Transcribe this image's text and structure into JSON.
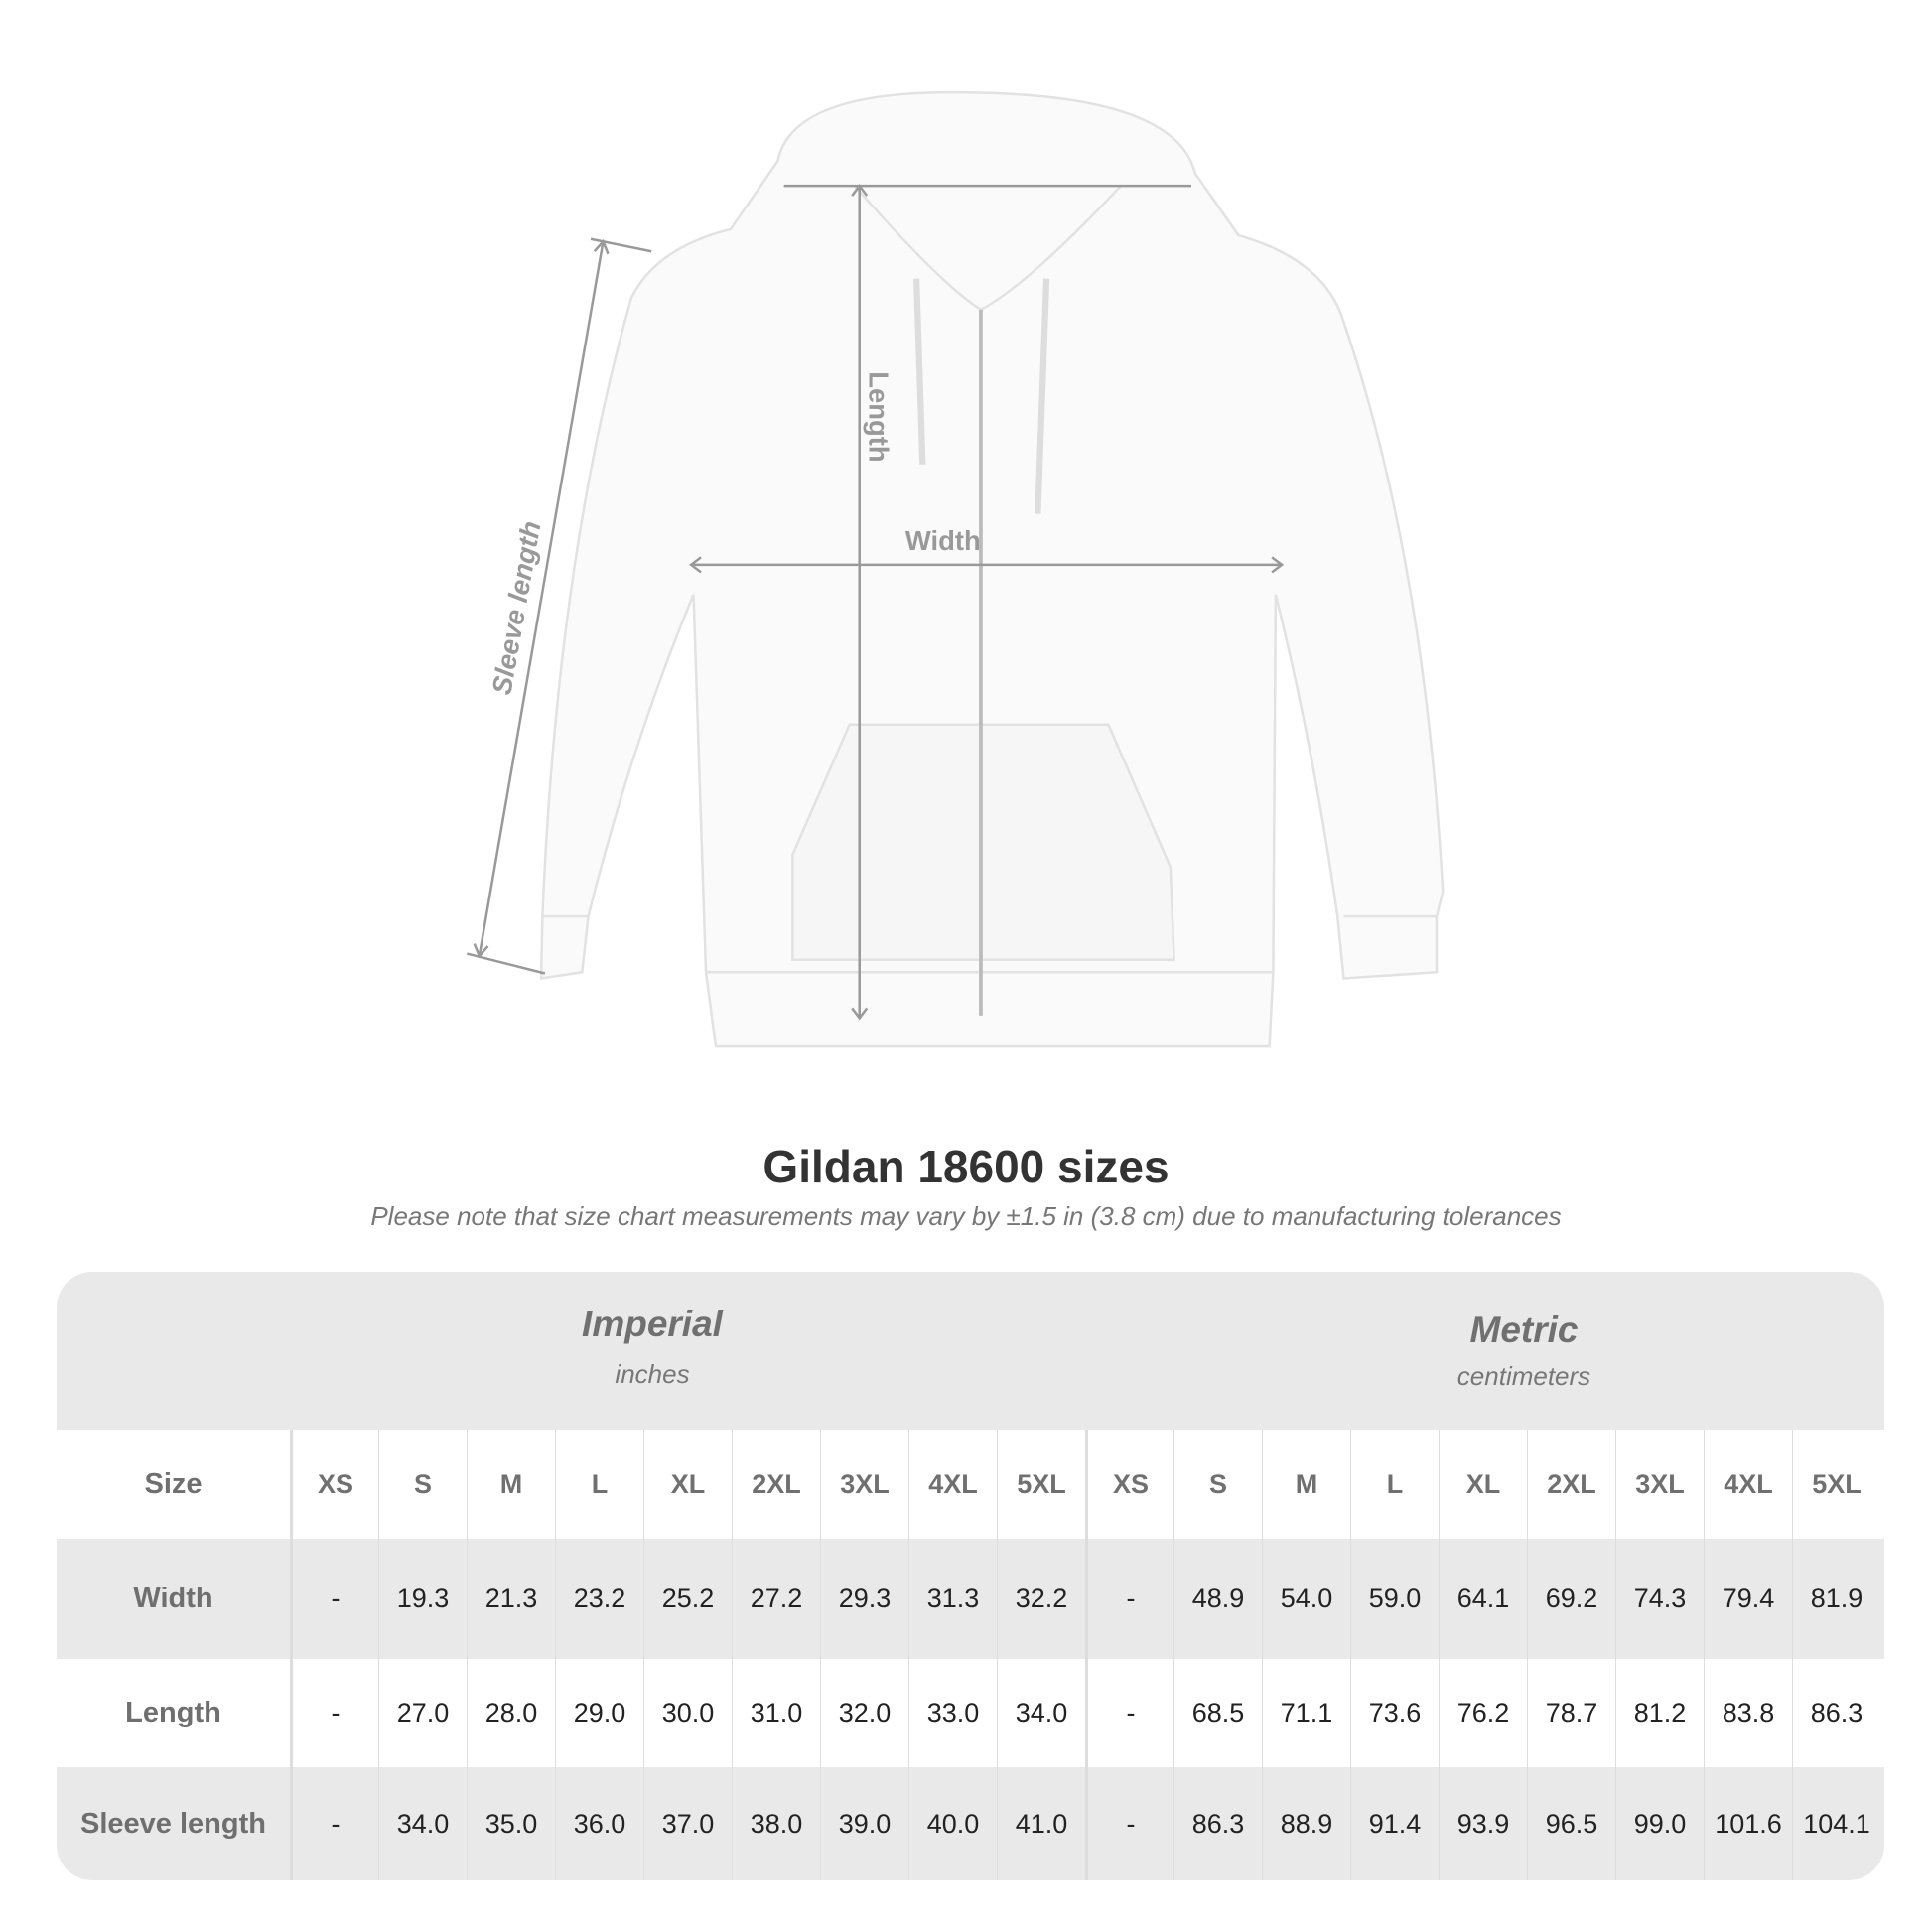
{
  "diagram": {
    "labels": {
      "length": "Length",
      "width": "Width",
      "sleeve": "Sleeve length"
    }
  },
  "title": "Gildan 18600 sizes",
  "note": "Please note that size chart measurements may vary by ±1.5 in (3.8 cm) due to manufacturing tolerances",
  "table": {
    "imperial": {
      "title": "Imperial",
      "unit": "inches"
    },
    "metric": {
      "title": "Metric",
      "unit": "centimeters"
    },
    "size_label": "Size",
    "sizes": [
      "XS",
      "S",
      "M",
      "L",
      "XL",
      "2XL",
      "3XL",
      "4XL",
      "5XL"
    ],
    "rows": [
      {
        "label": "Width",
        "imperial": [
          "-",
          "19.3",
          "21.3",
          "23.2",
          "25.2",
          "27.2",
          "29.3",
          "31.3",
          "32.2"
        ],
        "metric": [
          "-",
          "48.9",
          "54.0",
          "59.0",
          "64.1",
          "69.2",
          "74.3",
          "79.4",
          "81.9"
        ]
      },
      {
        "label": "Length",
        "imperial": [
          "-",
          "27.0",
          "28.0",
          "29.0",
          "30.0",
          "31.0",
          "32.0",
          "33.0",
          "34.0"
        ],
        "metric": [
          "-",
          "68.5",
          "71.1",
          "73.6",
          "76.2",
          "78.7",
          "81.2",
          "83.8",
          "86.3"
        ]
      },
      {
        "label": "Sleeve length",
        "imperial": [
          "-",
          "34.0",
          "35.0",
          "36.0",
          "37.0",
          "38.0",
          "39.0",
          "40.0",
          "41.0"
        ],
        "metric": [
          "-",
          "86.3",
          "88.9",
          "91.4",
          "93.9",
          "96.5",
          "99.0",
          "101.6",
          "104.1"
        ]
      }
    ]
  }
}
